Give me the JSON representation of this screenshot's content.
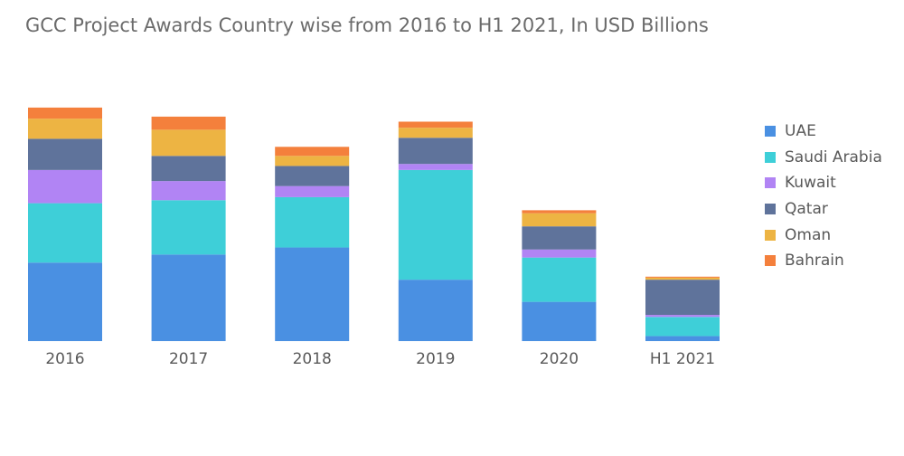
{
  "chart_data": {
    "type": "bar",
    "stacked": true,
    "title": "GCC Project Awards Country wise from 2016 to H1 2021, In USD Billions",
    "xlabel": "",
    "ylabel": "",
    "categories": [
      "2016",
      "2017",
      "2018",
      "2019",
      "2020",
      "H1 2021"
    ],
    "series": [
      {
        "name": "UAE",
        "color": "#4a90e2",
        "values": [
          78,
          86,
          93,
          61,
          39,
          5
        ]
      },
      {
        "name": "Saudi Arabia",
        "color": "#3ecfd8",
        "values": [
          59,
          54,
          50,
          109,
          44,
          19
        ]
      },
      {
        "name": "Kuwait",
        "color": "#b184f4",
        "values": [
          33,
          19,
          11,
          6,
          8,
          2
        ]
      },
      {
        "name": "Qatar",
        "color": "#5f739b",
        "values": [
          31,
          25,
          20,
          26,
          23,
          35
        ]
      },
      {
        "name": "Oman",
        "color": "#edb443",
        "values": [
          20,
          26,
          10,
          10,
          13,
          2
        ]
      },
      {
        "name": "Bahrain",
        "color": "#f4803c",
        "values": [
          11,
          13,
          9,
          6,
          3,
          1
        ]
      }
    ],
    "ylim": [
      0,
      240
    ],
    "grid": false,
    "legend_position": "right"
  }
}
